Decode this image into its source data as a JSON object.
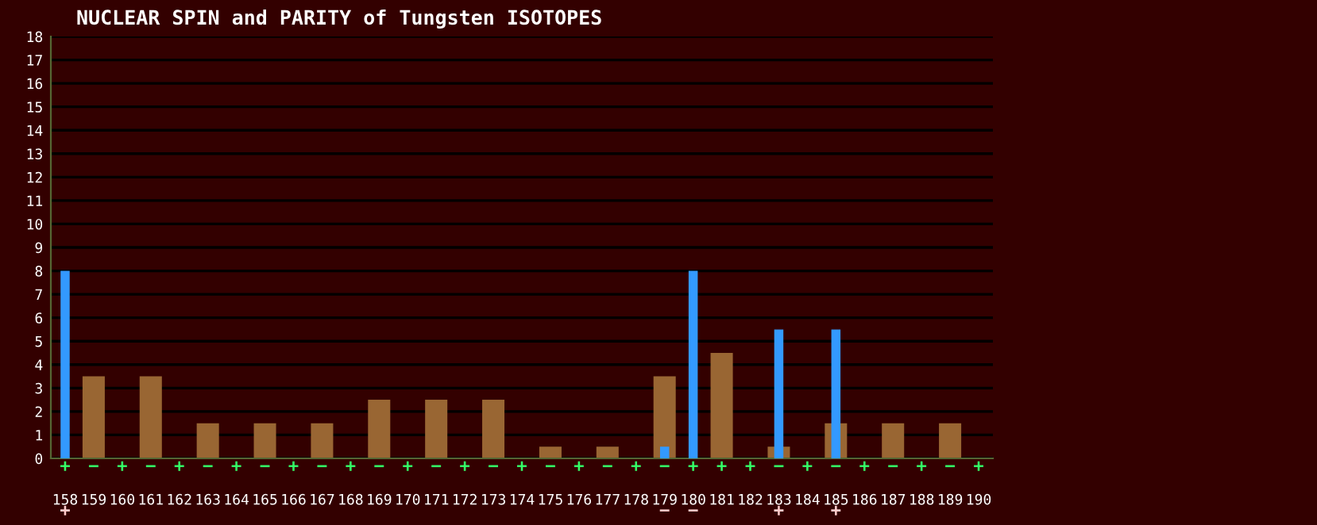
{
  "chart_data": {
    "type": "bar",
    "title": "NUCLEAR SPIN and PARITY of Tungsten ISOTOPES",
    "categories": [
      "158",
      "159",
      "160",
      "161",
      "162",
      "163",
      "164",
      "165",
      "166",
      "167",
      "168",
      "169",
      "170",
      "171",
      "172",
      "173",
      "174",
      "175",
      "176",
      "177",
      "178",
      "179",
      "180",
      "181",
      "182",
      "183",
      "184",
      "185",
      "186",
      "187",
      "188",
      "189",
      "190"
    ],
    "series": [
      {
        "color": "#996633",
        "values": [
          0,
          3.5,
          0,
          3.5,
          0,
          1.5,
          0,
          1.5,
          0,
          1.5,
          0,
          2.5,
          0,
          2.5,
          0,
          2.5,
          0,
          0.5,
          0,
          0.5,
          0,
          3.5,
          0,
          4.5,
          0,
          0.5,
          0,
          1.5,
          0,
          1.5,
          0,
          1.5,
          0
        ],
        "value_labels": [
          "+",
          "−",
          "+",
          "−",
          "+",
          "−",
          "+",
          "−",
          "+",
          "−",
          "+",
          "−",
          "+",
          "−",
          "+",
          "−",
          "+",
          "−",
          "+",
          "−",
          "+",
          "−",
          "+",
          "+",
          "+",
          "−",
          "+",
          "−",
          "+",
          "−",
          "+",
          "−",
          "+"
        ]
      },
      {
        "color": "#3399ff",
        "values": [
          8,
          null,
          null,
          null,
          null,
          null,
          null,
          null,
          null,
          null,
          null,
          null,
          null,
          null,
          null,
          null,
          null,
          null,
          null,
          null,
          null,
          0.5,
          8,
          null,
          null,
          5.5,
          null,
          5.5,
          null,
          null,
          null,
          null,
          null
        ],
        "value_labels": [
          "+",
          null,
          null,
          null,
          null,
          null,
          null,
          null,
          null,
          null,
          null,
          null,
          null,
          null,
          null,
          null,
          null,
          null,
          null,
          null,
          null,
          "−",
          "−",
          null,
          null,
          "+",
          null,
          "+",
          null,
          null,
          null,
          null,
          null
        ]
      }
    ],
    "ylim": [
      0,
      18
    ],
    "yticks": [
      0,
      1,
      2,
      3,
      4,
      5,
      6,
      7,
      8,
      9,
      10,
      11,
      12,
      13,
      14,
      15,
      16,
      17,
      18
    ],
    "grid": "y"
  }
}
